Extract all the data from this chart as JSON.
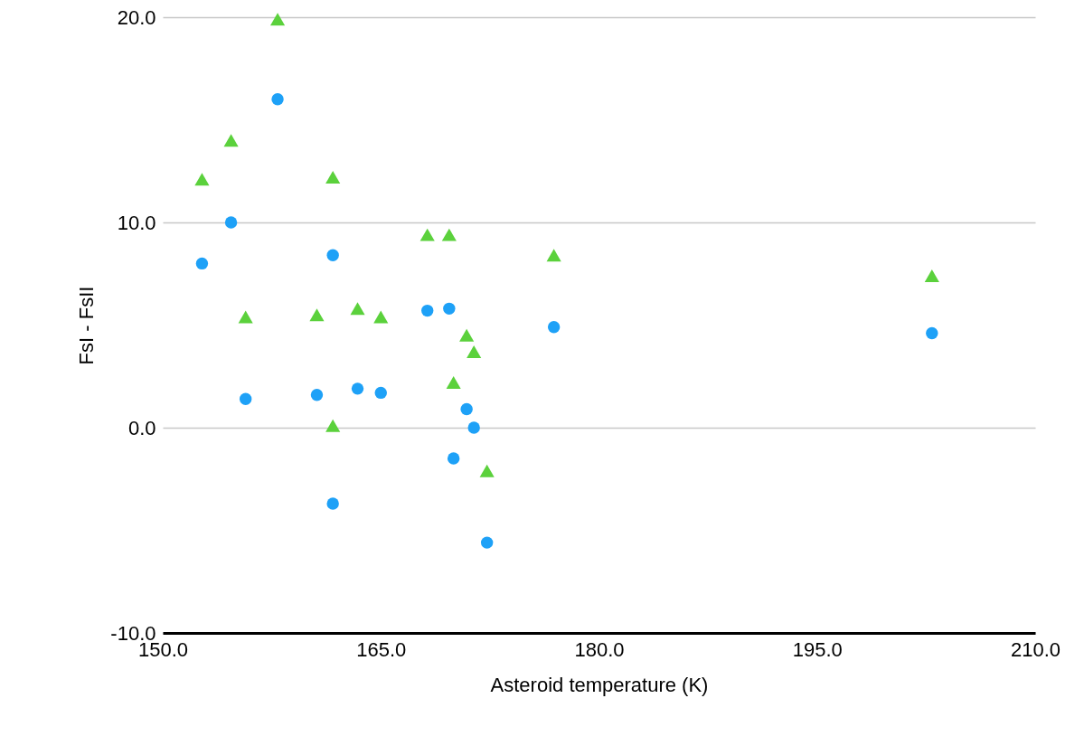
{
  "chart_data": {
    "type": "scatter",
    "xlabel": "Asteroid temperature (K)",
    "ylabel": "FsI - FsII",
    "xlim": [
      150,
      210
    ],
    "ylim": [
      -10,
      20
    ],
    "xticks": [
      {
        "value": 150,
        "label": "150.0"
      },
      {
        "value": 165,
        "label": "165.0"
      },
      {
        "value": 180,
        "label": "180.0"
      },
      {
        "value": 195,
        "label": "195.0"
      },
      {
        "value": 210,
        "label": "210.0"
      }
    ],
    "yticks": [
      {
        "value": -10,
        "label": "-10.0"
      },
      {
        "value": 0,
        "label": "0.0"
      },
      {
        "value": 10,
        "label": "10.0"
      },
      {
        "value": 20,
        "label": "20.0"
      }
    ],
    "grid": "y",
    "series": [
      {
        "color": "#1ea1f7",
        "marker": "circle",
        "x": [
          152.7,
          154.7,
          157.9,
          155.7,
          161.7,
          160.6,
          161.7,
          163.4,
          165.0,
          168.2,
          169.7,
          170.0,
          170.9,
          171.4,
          172.3,
          176.9,
          202.9
        ],
        "values": [
          8.0,
          10.0,
          16.0,
          1.4,
          8.4,
          1.6,
          -3.7,
          1.9,
          1.7,
          5.7,
          5.8,
          -1.5,
          0.9,
          0.0,
          -5.6,
          4.9,
          4.6
        ]
      },
      {
        "color": "#5bd13c",
        "marker": "triangle",
        "x": [
          152.7,
          154.7,
          157.9,
          155.7,
          161.7,
          160.6,
          161.7,
          163.4,
          165.0,
          168.2,
          169.7,
          170.0,
          170.9,
          171.4,
          172.3,
          176.9,
          202.9
        ],
        "values": [
          12.1,
          14.0,
          19.9,
          5.4,
          12.2,
          5.5,
          0.1,
          5.8,
          5.4,
          9.4,
          9.4,
          2.2,
          4.5,
          3.7,
          -2.1,
          8.4,
          7.4
        ]
      }
    ]
  }
}
